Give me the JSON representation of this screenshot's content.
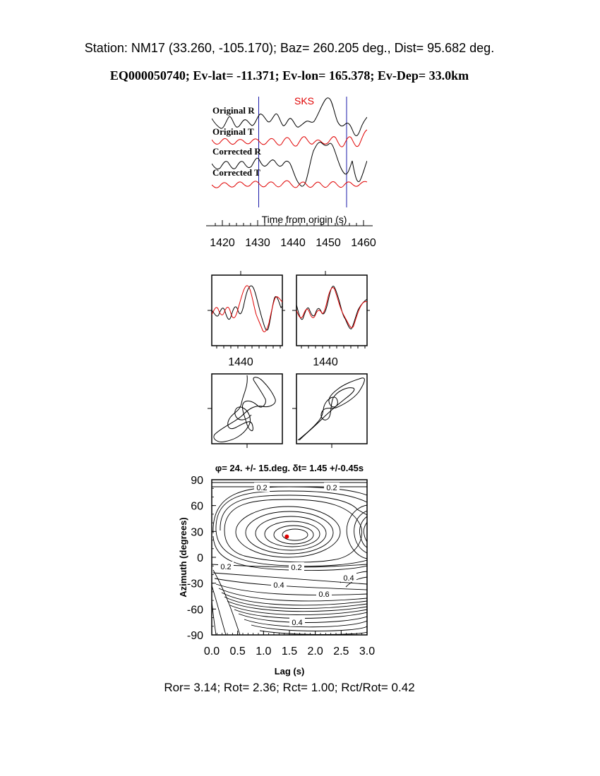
{
  "header": {
    "line1": "Station: NM17 (33.260, -105.170); Baz=  260.205 deg., Dist=   95.682 deg.",
    "line2": "EQ000050740; Ev-lat= -11.371; Ev-lon= 165.378; Ev-Dep= 33.0km"
  },
  "footer": {
    "ratios": "Ror= 3.14; Rot= 2.36; Rct= 1.00; Rct/Rot= 0.42"
  },
  "colors": {
    "black": "#000000",
    "red": "#e00000",
    "blue": "#1a1aa8"
  },
  "chart_data": [
    {
      "type": "line",
      "panel": "seismograms",
      "phase_label": "SKS",
      "xlabel": "Time from origin (s)",
      "xlim": [
        1417,
        1461
      ],
      "xticks": [
        1420,
        1430,
        1440,
        1450,
        1460
      ],
      "window_markers": [
        1430.3,
        1455.2
      ],
      "series": [
        {
          "name": "Original R",
          "color": "black"
        },
        {
          "name": "Original T",
          "color": "red"
        },
        {
          "name": "Corrected R",
          "color": "black"
        },
        {
          "name": "Corrected T",
          "color": "red"
        }
      ]
    },
    {
      "type": "line",
      "panel": "waveform-comparison",
      "xticks": [
        1440
      ],
      "xtick_labels": [
        "1440",
        "1440"
      ],
      "series_colors": [
        "black",
        "red"
      ]
    },
    {
      "type": "line",
      "panel": "particle-motion",
      "series_colors": [
        "black"
      ]
    },
    {
      "type": "heatmap",
      "panel": "error-surface",
      "title": "φ= 24. +/- 15.deg. δt= 1.45 +/-0.45s",
      "xlabel": "Lag (s)",
      "ylabel": "Azimuth (degrees)",
      "xlim": [
        0.0,
        3.0
      ],
      "ylim": [
        -90,
        90
      ],
      "xticks": [
        "0.0",
        "0.5",
        "1.0",
        "1.5",
        "2.0",
        "2.5",
        "3.0"
      ],
      "yticks": [
        "90",
        "60",
        "30",
        "0",
        "-30",
        "-60",
        "-90"
      ],
      "best_fit": {
        "lag": 1.45,
        "azimuth": 24
      },
      "contour_labels": [
        "0.2",
        "0.2",
        "0.2",
        "0.2",
        "0.4",
        "0.4",
        "0.6",
        "0.4"
      ]
    }
  ]
}
